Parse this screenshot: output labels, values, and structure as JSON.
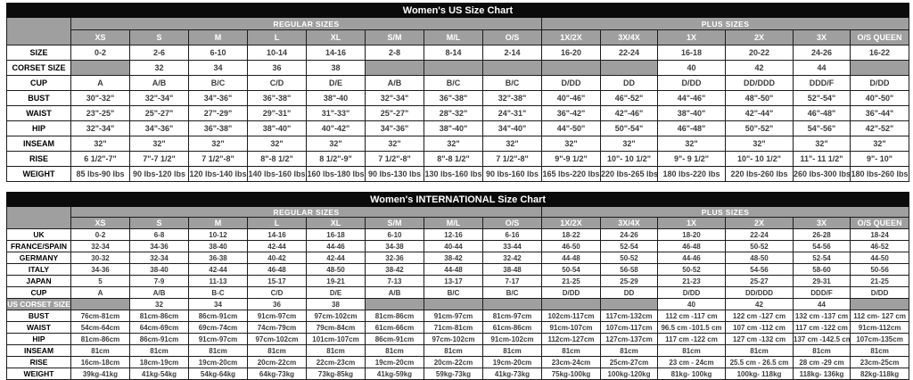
{
  "colors": {
    "title_bar_bg": "#0b0b0b",
    "title_bar_text": "#ffffff",
    "header_bg": "#9f9f9f",
    "header_text": "#ffffff",
    "cell_text": "#3c3c3c",
    "border": "#1c1c1c"
  },
  "tables": [
    {
      "title": "Women's US Size Chart",
      "regular_group_label": "REGULAR SIZES",
      "plus_group_label": "PLUS SIZES",
      "regular_span": 8,
      "plus_span": 6,
      "columns": [
        "XS",
        "S",
        "M",
        "L",
        "XL",
        "S/M",
        "M/L",
        "O/S",
        "1X/2X",
        "3X/4X",
        "1X",
        "2X",
        "3X",
        "O/S QUEEN"
      ],
      "rows": [
        {
          "label": "SIZE",
          "values": [
            "0-2",
            "2-6",
            "6-10",
            "10-14",
            "14-16",
            "2-8",
            "8-14",
            "2-14",
            "16-20",
            "22-24",
            "16-18",
            "20-22",
            "24-26",
            "16-22"
          ]
        },
        {
          "label": "CORSET SIZE",
          "values": [
            null,
            "32",
            "34",
            "36",
            "38",
            null,
            null,
            null,
            null,
            null,
            "40",
            "42",
            "44",
            null
          ]
        },
        {
          "label": "CUP",
          "values": [
            "A",
            "A/B",
            "B/C",
            "C/D",
            "D/E",
            "A/B",
            "B/C",
            "B/C",
            "D/DD",
            "DD",
            "D/DD",
            "DD/DDD",
            "DDD/F",
            "D/DD"
          ]
        },
        {
          "label": "BUST",
          "values": [
            "30\"-32\"",
            "32\"-34\"",
            "34\"-36\"",
            "36\"-38\"",
            "38\"-40",
            "32\"-34\"",
            "36\"-38\"",
            "32\"-38\"",
            "40\"-46\"",
            "46\"-52\"",
            "44\"-46\"",
            "48\"-50\"",
            "52\"-54\"",
            "40\"-50\""
          ]
        },
        {
          "label": "WAIST",
          "values": [
            "23\"-25\"",
            "25\"-27\"",
            "27\"-29\"",
            "29\"-31\"",
            "31\"-33\"",
            "25\"-27\"",
            "28\"-32\"",
            "24\"-31\"",
            "36\"-42\"",
            "42\"-46\"",
            "38\"-40\"",
            "42\"-44\"",
            "46\"-48\"",
            "36\"-44\""
          ]
        },
        {
          "label": "HIP",
          "values": [
            "32\"-34\"",
            "34\"-36\"",
            "36\"-38\"",
            "38\"-40\"",
            "40\"-42\"",
            "34\"-36\"",
            "38\"-40\"",
            "34\"-40\"",
            "44\"-50\"",
            "50\"-54\"",
            "46\"-48\"",
            "50\"-52\"",
            "54\"-56\"",
            "42\"-52\""
          ]
        },
        {
          "label": "INSEAM",
          "values": [
            "32\"",
            "32\"",
            "32\"",
            "32\"",
            "32\"",
            "32\"",
            "32\"",
            "32\"",
            "32\"",
            "32\"",
            "32\"",
            "32\"",
            "32\"",
            "32\""
          ]
        },
        {
          "label": "RISE",
          "values": [
            "6 1/2\"-7\"",
            "7\"-7 1/2\"",
            "7 1/2\"-8\"",
            "8\"-8 1/2\"",
            "8 1/2\"-9\"",
            "7 1/2\"-8\"",
            "8\"-8 1/2\"",
            "7 1/2\"-8\"",
            "9\"-9 1/2\"",
            "10\"- 10 1/2\"",
            "9\"- 9 1/2\"",
            "10\"- 10 1/2\"",
            "11\"- 11 1/2\"",
            "9\"- 10\""
          ]
        },
        {
          "label": "WEIGHT",
          "values": [
            "85 lbs-90 lbs",
            "90 lbs-120 lbs",
            "120 lbs-140 lbs",
            "140 lbs-160 lbs",
            "160 lbs-180 lbs",
            "90 lbs-130 lbs",
            "130 lbs-160 lbs",
            "90 lbs-160 lbs",
            "165 lbs-220 lbs",
            "220 lbs-265 lbs",
            "180 lbs-220 lbs",
            "220 lbs-260 lbs",
            "260 lbs-300 lbs",
            "180 lbs-260 lbs"
          ]
        }
      ]
    },
    {
      "title": "Women's INTERNATIONAL Size Chart",
      "regular_group_label": "REGULAR SIZES",
      "plus_group_label": "PLUS SIZES",
      "regular_span": 8,
      "plus_span": 6,
      "columns": [
        "XS",
        "S",
        "M",
        "L",
        "XL",
        "S/M",
        "M/L",
        "O/S",
        "1X/2X",
        "3X/4X",
        "1X",
        "2X",
        "3X",
        "O/S QUEEN"
      ],
      "rows": [
        {
          "label": "UK",
          "values": [
            "0-2",
            "6-8",
            "10-12",
            "14-16",
            "16-18",
            "6-10",
            "12-16",
            "6-16",
            "18-22",
            "24-26",
            "18-20",
            "22-24",
            "26-28",
            "18-24"
          ]
        },
        {
          "label": "FRANCE/SPAIN",
          "values": [
            "32-34",
            "34-36",
            "38-40",
            "42-44",
            "44-46",
            "34-38",
            "40-44",
            "33-44",
            "46-50",
            "52-54",
            "46-48",
            "50-52",
            "54-56",
            "46-52"
          ]
        },
        {
          "label": "GERMANY",
          "values": [
            "30-32",
            "32-34",
            "36-38",
            "40-42",
            "42-44",
            "32-36",
            "38-42",
            "32-42",
            "44-48",
            "50-52",
            "44-46",
            "48-50",
            "52-54",
            "44-50"
          ]
        },
        {
          "label": "ITALY",
          "values": [
            "34-36",
            "38-40",
            "42-44",
            "46-48",
            "48-50",
            "38-42",
            "44-48",
            "38-48",
            "50-54",
            "56-58",
            "50-52",
            "54-56",
            "58-60",
            "50-56"
          ]
        },
        {
          "label": "JAPAN",
          "values": [
            "5",
            "7-9",
            "11-13",
            "15-17",
            "19-21",
            "7-13",
            "13-17",
            "7-17",
            "21-25",
            "25-29",
            "21-23",
            "25-27",
            "29-31",
            "21-25"
          ]
        },
        {
          "label": "CUP",
          "values": [
            "A",
            "A/B",
            "B-C",
            "C/D",
            "D/E",
            "A/B",
            "B/C",
            "B/C",
            "D/DD",
            "DD",
            "D/DD",
            "DD/DDD",
            "DDD/F",
            "D/DD"
          ]
        },
        {
          "label": "US CORSET SIZE",
          "label_inverse": true,
          "values": [
            null,
            "32",
            "34",
            "36",
            "38",
            null,
            null,
            null,
            null,
            null,
            "40",
            "42",
            "44",
            null
          ]
        },
        {
          "label": "BUST",
          "values": [
            "76cm-81cm",
            "81cm-86cm",
            "86cm-91cm",
            "91cm-97cm",
            "97cm-102cm",
            "81cm-86cm",
            "91cm-97cm",
            "81cm-97cm",
            "102cm-117cm",
            "117cm-132cm",
            "112 cm -117 cm",
            "122 cm -127 cm",
            "132 cm -137 cm",
            "112 cm- 127 cm"
          ]
        },
        {
          "label": "WAIST",
          "values": [
            "54cm-64cm",
            "64cm-69cm",
            "69cm-74cm",
            "74cm-79cm",
            "79cm-84cm",
            "61cm-66cm",
            "71cm-81cm",
            "61cm-86cm",
            "91cm-107cm",
            "107cm-117cm",
            "96.5 cm -101.5 cm",
            "107 cm -112 cm",
            "117 cm -122 cm",
            "91cm-112cm"
          ]
        },
        {
          "label": "HIP",
          "values": [
            "81cm-86cm",
            "86cm-91cm",
            "91cm-97cm",
            "97cm-102cm",
            "101cm-107cm",
            "86cm-91cm",
            "97cm-102cm",
            "91cm-102cm",
            "112cm-127cm",
            "127cm-137cm",
            "117 cm -122 cm",
            "127 cm -132 cm",
            "137 cm -142.5 cm",
            "107cm-135cm"
          ]
        },
        {
          "label": "INSEAM",
          "values": [
            "81cm",
            "81cm",
            "81cm",
            "81cm",
            "81cm",
            "81cm",
            "81cm",
            "81cm",
            "81cm",
            "81cm",
            "81cm",
            "81cm",
            "81cm",
            "81cm"
          ]
        },
        {
          "label": "RISE",
          "values": [
            "16cm-18cm",
            "18cm-19cm",
            "19cm-20cm",
            "20cm-22cm",
            "22cm-23cm",
            "19cm-20cm",
            "20cm-22cm",
            "19cm-20cm",
            "23cm-24cm",
            "25cm-27cm",
            "23 cm - 24cm",
            "25.5 cm - 26.5 cm",
            "28 cm -29 cm",
            "23cm-25cm"
          ]
        },
        {
          "label": "WEIGHT",
          "values": [
            "39kg-41kg",
            "41kg-54kg",
            "54kg-64kg",
            "64kg-73kg",
            "73kg-85kg",
            "41kg-59kg",
            "59kg-73kg",
            "41kg-73kg",
            "75kg-100kg",
            "100kg-120kg",
            "81kg- 100kg",
            "100kg- 118kg",
            "118kg- 136kg",
            "82kg-118kg"
          ]
        }
      ]
    }
  ]
}
